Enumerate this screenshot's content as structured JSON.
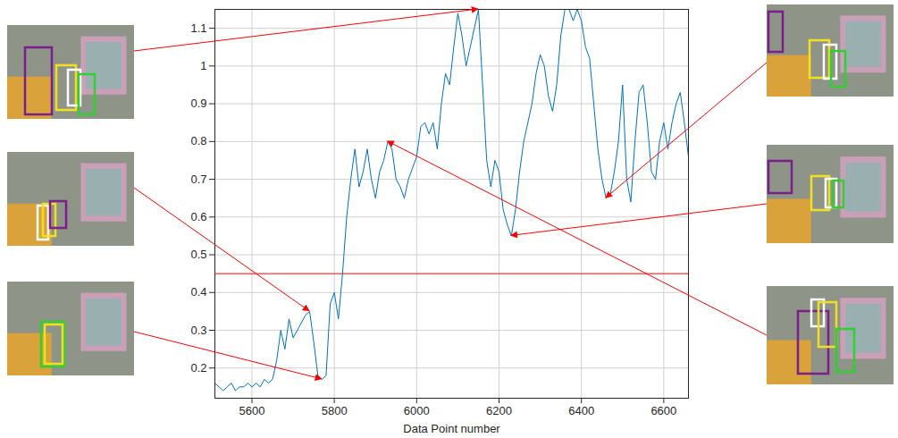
{
  "chart_data": {
    "type": "line",
    "xlabel": "Data Point number",
    "x": [
      5510,
      5520,
      5530,
      5540,
      5550,
      5560,
      5570,
      5580,
      5590,
      5600,
      5610,
      5620,
      5630,
      5640,
      5650,
      5660,
      5670,
      5680,
      5690,
      5700,
      5710,
      5720,
      5730,
      5740,
      5750,
      5760,
      5770,
      5780,
      5790,
      5800,
      5810,
      5820,
      5830,
      5840,
      5850,
      5860,
      5870,
      5880,
      5890,
      5900,
      5910,
      5920,
      5930,
      5940,
      5950,
      5960,
      5970,
      5980,
      5990,
      6000,
      6010,
      6020,
      6030,
      6040,
      6050,
      6060,
      6070,
      6080,
      6090,
      6100,
      6110,
      6120,
      6130,
      6140,
      6150,
      6160,
      6170,
      6180,
      6190,
      6200,
      6210,
      6220,
      6230,
      6240,
      6250,
      6260,
      6270,
      6280,
      6290,
      6300,
      6310,
      6320,
      6330,
      6340,
      6350,
      6360,
      6370,
      6380,
      6390,
      6400,
      6410,
      6420,
      6430,
      6440,
      6450,
      6460,
      6470,
      6480,
      6490,
      6500,
      6510,
      6520,
      6530,
      6540,
      6550,
      6560,
      6570,
      6580,
      6590,
      6600,
      6610,
      6620,
      6630,
      6640,
      6650,
      6660
    ],
    "series": [
      {
        "color": "#0072bd",
        "values": [
          0.16,
          0.15,
          0.14,
          0.15,
          0.16,
          0.14,
          0.15,
          0.15,
          0.16,
          0.15,
          0.16,
          0.15,
          0.17,
          0.16,
          0.17,
          0.22,
          0.3,
          0.25,
          0.33,
          0.28,
          0.3,
          0.32,
          0.34,
          0.35,
          0.27,
          0.18,
          0.17,
          0.18,
          0.37,
          0.4,
          0.33,
          0.45,
          0.6,
          0.7,
          0.78,
          0.68,
          0.72,
          0.78,
          0.7,
          0.65,
          0.72,
          0.75,
          0.8,
          0.78,
          0.7,
          0.68,
          0.65,
          0.7,
          0.73,
          0.76,
          0.84,
          0.85,
          0.82,
          0.85,
          0.78,
          0.9,
          0.98,
          0.95,
          1.05,
          1.14,
          1.08,
          1.0,
          1.05,
          1.1,
          1.15,
          0.95,
          0.75,
          0.68,
          0.75,
          0.72,
          0.62,
          0.58,
          0.55,
          0.62,
          0.72,
          0.8,
          0.85,
          0.9,
          0.98,
          1.03,
          1.0,
          0.92,
          0.88,
          0.95,
          1.08,
          1.15,
          1.15,
          1.12,
          1.15,
          1.12,
          1.05,
          1.02,
          0.9,
          0.78,
          0.7,
          0.65,
          0.66,
          0.72,
          0.8,
          0.95,
          0.7,
          0.64,
          0.8,
          0.93,
          0.95,
          0.85,
          0.72,
          0.7,
          0.8,
          0.85,
          0.78,
          0.85,
          0.9,
          0.93,
          0.85,
          0.76
        ]
      }
    ],
    "xlim": [
      5510,
      6660
    ],
    "ylim": [
      0.12,
      1.15
    ],
    "xticks": [
      5600,
      5800,
      6000,
      6200,
      6400,
      6600
    ],
    "yticks": [
      0.2,
      0.3,
      0.4,
      0.5,
      0.6,
      0.7,
      0.8,
      0.9,
      1,
      1.1
    ],
    "grid": true,
    "reference_line": {
      "y": 0.45,
      "color": "#ff0000"
    },
    "annotations": [
      {
        "x": 6150,
        "y": 1.15,
        "color": "#ff0000"
      },
      {
        "x": 5740,
        "y": 0.35,
        "color": "#ff0000"
      },
      {
        "x": 5770,
        "y": 0.17,
        "color": "#ff0000"
      },
      {
        "x": 6460,
        "y": 0.65,
        "color": "#ff0000"
      },
      {
        "x": 6230,
        "y": 0.55,
        "color": "#ff0000"
      },
      {
        "x": 5930,
        "y": 0.8,
        "color": "#ff0000"
      }
    ]
  }
}
